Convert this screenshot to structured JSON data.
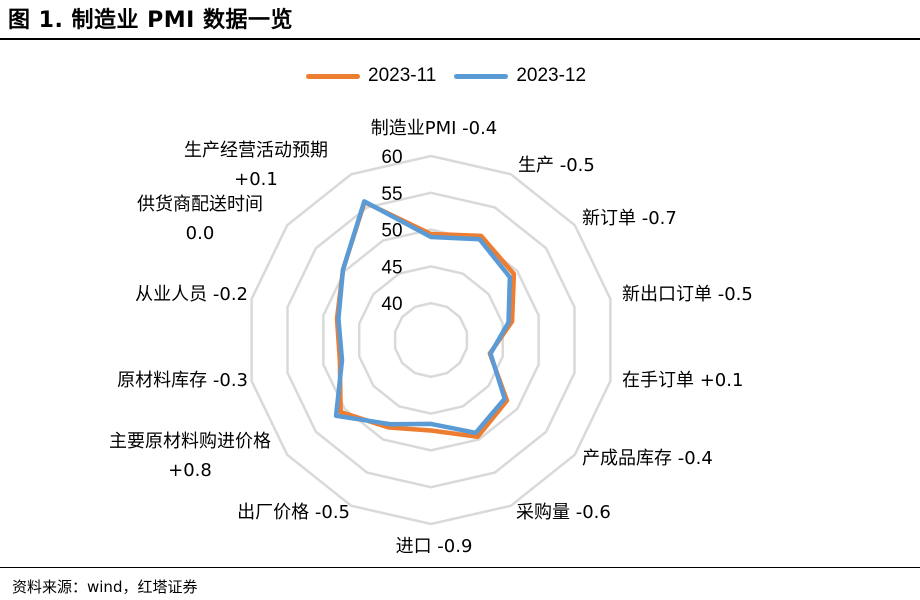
{
  "figure": {
    "title": "图 1. 制造业 PMI 数据一览",
    "source": "资料来源：wind，红塔证券"
  },
  "colors": {
    "series_2023_11": "#ED7D31",
    "series_2023_12": "#5B9BD5",
    "grid": "#D9D9D9"
  },
  "chart_data": {
    "type": "radar",
    "title": "",
    "axes": [
      {
        "name": "制造业PMI",
        "change": "-0.4"
      },
      {
        "name": "生产",
        "change": "-0.5"
      },
      {
        "name": "新订单",
        "change": "-0.7"
      },
      {
        "name": "新出口订单",
        "change": "-0.5"
      },
      {
        "name": "在手订单",
        "change": "+0.1"
      },
      {
        "name": "产成品库存",
        "change": "-0.4"
      },
      {
        "name": "采购量",
        "change": "-0.6"
      },
      {
        "name": "进口",
        "change": "-0.9"
      },
      {
        "name": "出厂价格",
        "change": "-0.5"
      },
      {
        "name": "主要原材料购进价格",
        "change": "+0.8"
      },
      {
        "name": "原材料库存",
        "change": "-0.3"
      },
      {
        "name": "从业人员",
        "change": "-0.2"
      },
      {
        "name": "供货商配送时间",
        "change": "0.0"
      },
      {
        "name": "生产经营活动预期",
        "change": "+0.1"
      }
    ],
    "axis_labels": [
      "制造业PMI -0.4",
      "生产 -0.5",
      "新订单 -0.7",
      "新出口订单 -0.5",
      "在手订单 +0.1",
      "产成品库存 -0.4",
      "采购量 -0.6",
      "进口 -0.9",
      "出厂价格 -0.5",
      "主要原材料购进价格 +0.8",
      "原材料库存 -0.3",
      "从业人员 -0.2",
      "供货商配送时间 0.0",
      "生产经营活动预期 +0.1"
    ],
    "ticks": [
      40,
      45,
      50,
      55,
      60
    ],
    "range": [
      35,
      60
    ],
    "grid": true,
    "legend_position": "top",
    "series": [
      {
        "name": "2023-11",
        "values": [
          49.4,
          50.7,
          49.4,
          46.3,
          43.2,
          48.2,
          49.6,
          47.3,
          48.2,
          50.7,
          47.7,
          48.1,
          50.3,
          55.8
        ]
      },
      {
        "name": "2023-12",
        "values": [
          49.0,
          50.2,
          48.7,
          45.8,
          43.3,
          47.8,
          49.0,
          46.4,
          47.7,
          51.5,
          47.4,
          47.9,
          50.3,
          55.9
        ]
      }
    ]
  }
}
